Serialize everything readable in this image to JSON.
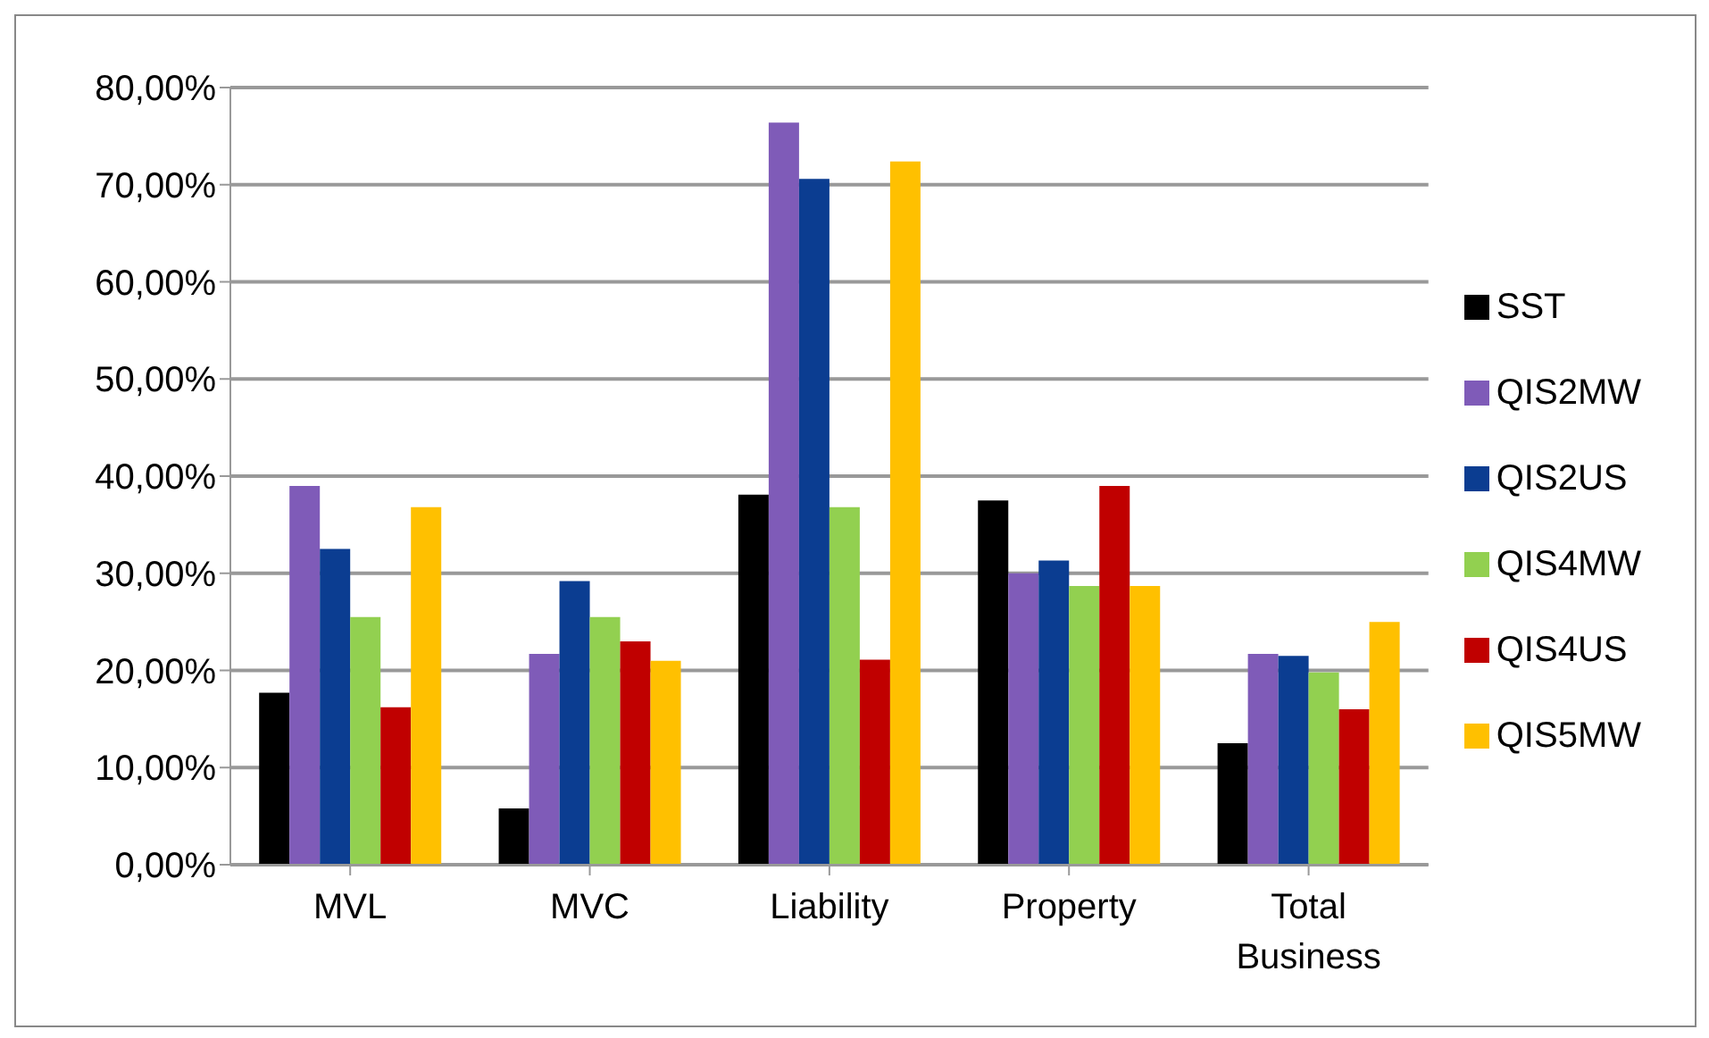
{
  "chart_data": {
    "type": "bar",
    "categories": [
      "MVL",
      "MVC",
      "Liability",
      "Property",
      "Total Business"
    ],
    "series": [
      {
        "name": "SST",
        "color": "#000000",
        "values": [
          17.7,
          5.8,
          38.1,
          37.5,
          12.5
        ]
      },
      {
        "name": "QIS2MW",
        "color": "#7f5bb8",
        "values": [
          39,
          21.7,
          76.4,
          30,
          21.7
        ]
      },
      {
        "name": "QIS2US",
        "color": "#0b3d91",
        "values": [
          32.5,
          29.2,
          70.6,
          31.3,
          21.5
        ]
      },
      {
        "name": "QIS4MW",
        "color": "#92d050",
        "values": [
          25.5,
          25.5,
          36.8,
          28.7,
          19.8
        ]
      },
      {
        "name": "QIS4US",
        "color": "#c00000",
        "values": [
          16.2,
          23,
          21.1,
          39,
          16
        ]
      },
      {
        "name": "QIS5MW",
        "color": "#ffc000",
        "values": [
          36.8,
          21,
          72.4,
          28.7,
          25
        ]
      }
    ],
    "ylim": [
      0,
      80
    ],
    "yticks": [
      {
        "value": 0,
        "label": "0,00%"
      },
      {
        "value": 10,
        "label": "10,00%"
      },
      {
        "value": 20,
        "label": "20,00%"
      },
      {
        "value": 30,
        "label": "30,00%"
      },
      {
        "value": 40,
        "label": "40,00%"
      },
      {
        "value": 50,
        "label": "50,00%"
      },
      {
        "value": 60,
        "label": "60,00%"
      },
      {
        "value": 70,
        "label": "70,00%"
      },
      {
        "value": 80,
        "label": "80,00%"
      }
    ],
    "grid": "y",
    "legend": "right"
  }
}
